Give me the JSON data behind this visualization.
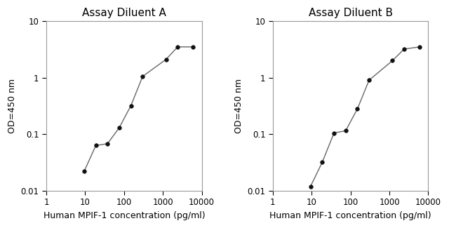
{
  "panel_A": {
    "title": "Assay Diluent A",
    "x": [
      9.375,
      18.75,
      37.5,
      75,
      150,
      300,
      1200,
      2400,
      6000
    ],
    "y": [
      0.022,
      0.063,
      0.068,
      0.13,
      0.32,
      1.05,
      2.1,
      3.5,
      3.5
    ],
    "xlim": [
      1,
      10000
    ],
    "ylim": [
      0.01,
      10
    ],
    "xlabel": "Human MPIF-1 concentration (pg/ml)",
    "ylabel": "OD=450 nm"
  },
  "panel_B": {
    "title": "Assay Diluent B",
    "x": [
      9.375,
      18.75,
      37.5,
      75,
      150,
      300,
      1200,
      2400,
      6000
    ],
    "y": [
      0.012,
      0.032,
      0.105,
      0.115,
      0.28,
      0.9,
      2.0,
      3.2,
      3.5
    ],
    "xlim": [
      1,
      10000
    ],
    "ylim": [
      0.01,
      10
    ],
    "xlabel": "Human MPIF-1 concentration (pg/ml)",
    "ylabel": "OD=450 nm"
  },
  "line_color": "#666666",
  "marker_color": "#111111",
  "marker_size": 4,
  "line_width": 1.0,
  "title_fontsize": 11,
  "label_fontsize": 9,
  "tick_fontsize": 8.5,
  "bg_color": "#ffffff",
  "yticks": [
    0.01,
    0.1,
    1,
    10
  ],
  "ytick_labels": [
    "0.01",
    "0.1",
    "1",
    "10"
  ],
  "xticks": [
    1,
    10,
    100,
    1000,
    10000
  ],
  "xtick_labels": [
    "1",
    "10",
    "100",
    "1000",
    "10000"
  ]
}
